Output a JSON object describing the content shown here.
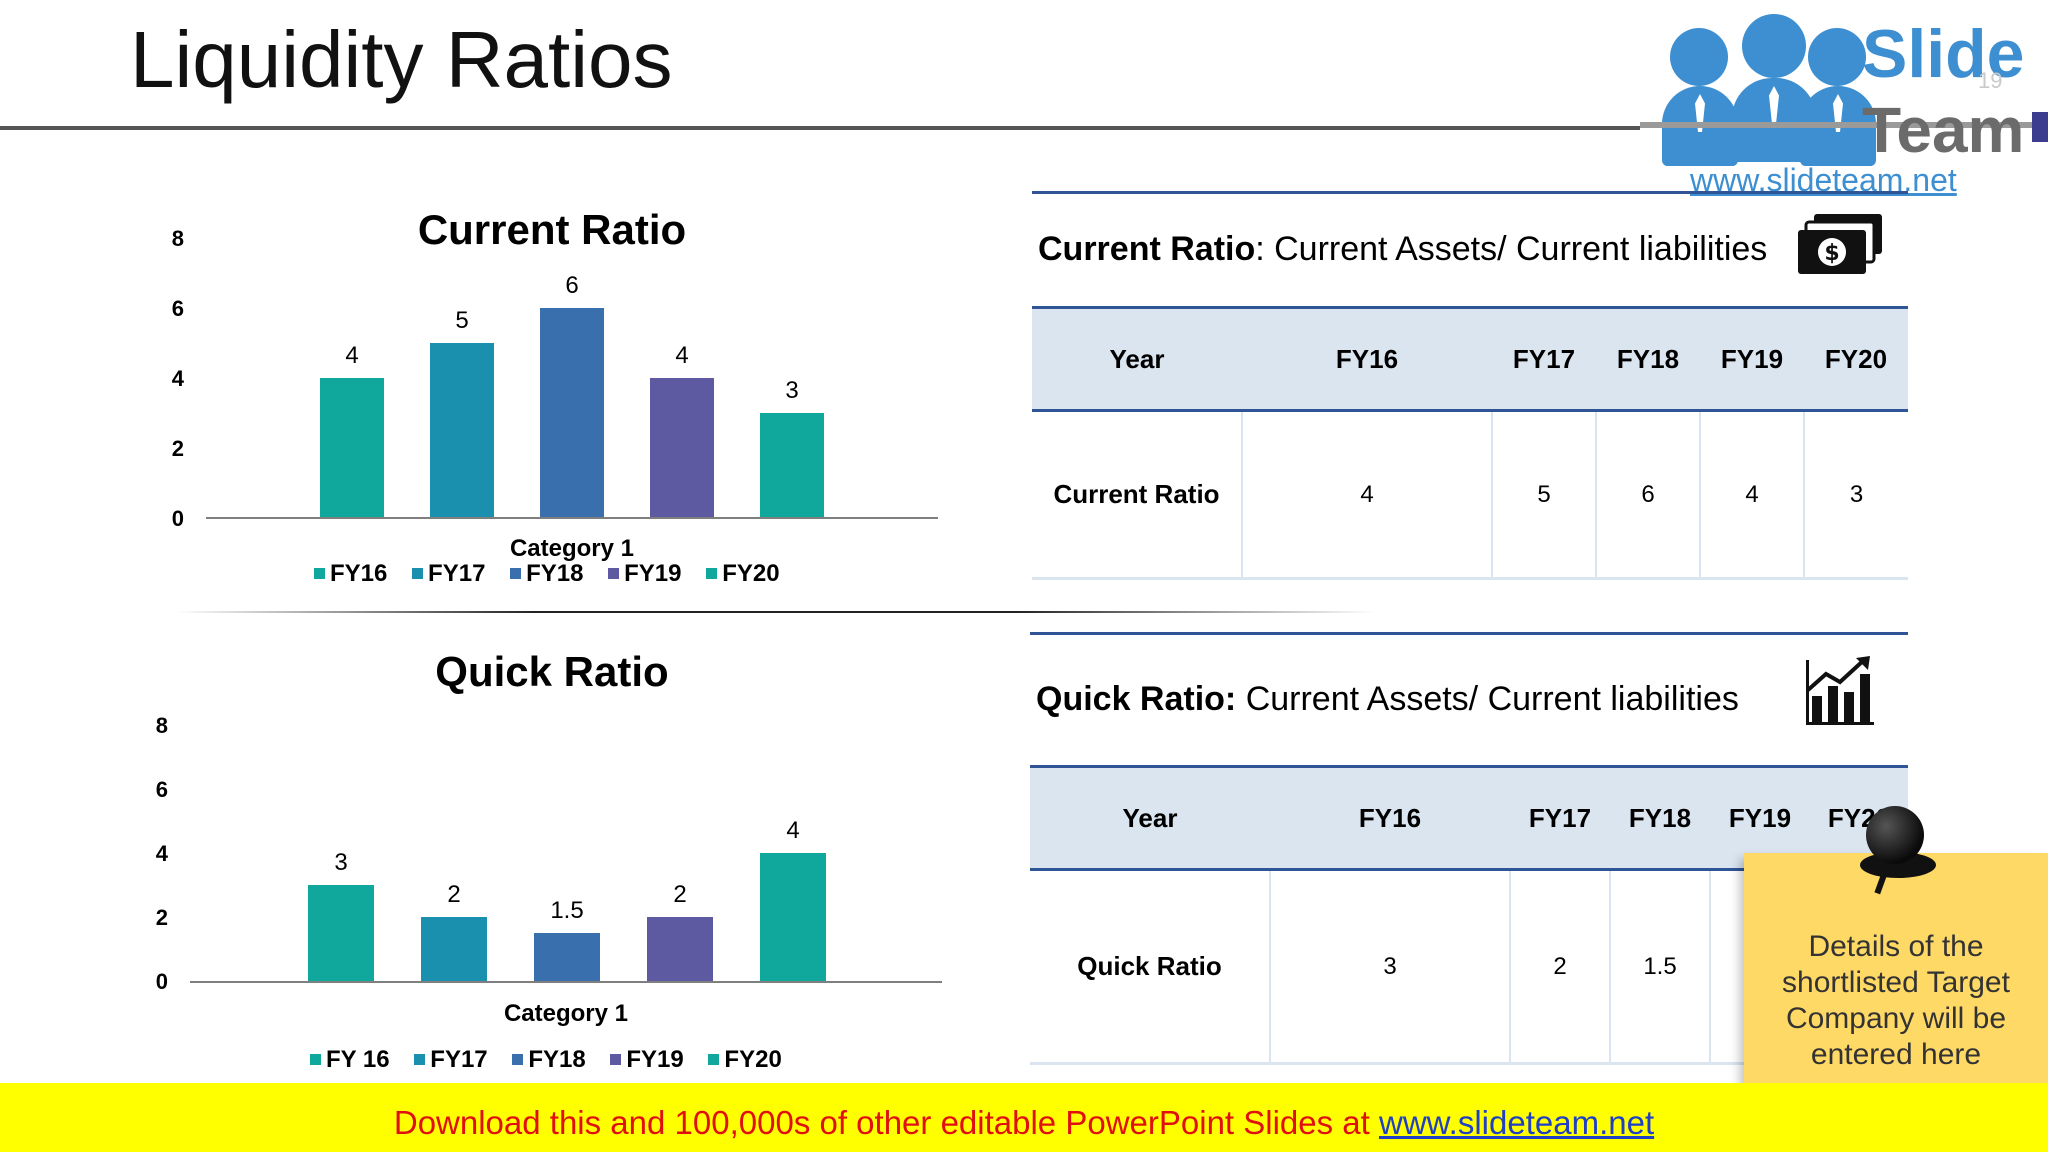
{
  "slide": {
    "title": "Liquidity Ratios",
    "page_number": "19"
  },
  "logo": {
    "word1": "Slide",
    "word2": "Team",
    "url": "www.slideteam.net"
  },
  "colors": {
    "teal": "#10a89c",
    "cyan_blue": "#1b8fae",
    "blue": "#3a6fad",
    "purple": "#5d5aa1",
    "header_fill": "#dae5f0",
    "rule_blue": "#2f5597",
    "banner_yellow": "#ffff00",
    "banner_red": "#e01010",
    "sticky_yellow": "#ffd966"
  },
  "chart_data": [
    {
      "type": "bar",
      "title": "Current Ratio",
      "categories": [
        "Category 1"
      ],
      "series": [
        {
          "name": "FY16",
          "values": [
            4
          ],
          "color": "#10a89c"
        },
        {
          "name": "FY17",
          "values": [
            5
          ],
          "color": "#1b8fae"
        },
        {
          "name": "FY18",
          "values": [
            6
          ],
          "color": "#3a6fad"
        },
        {
          "name": "FY19",
          "values": [
            4
          ],
          "color": "#5d5aa1"
        },
        {
          "name": "FY20",
          "values": [
            3
          ],
          "color": "#10a89c"
        }
      ],
      "data_labels": [
        "4",
        "5",
        "6",
        "4",
        "3"
      ],
      "yticks": [
        "0",
        "2",
        "4",
        "6",
        "8"
      ],
      "ylim": [
        0,
        8
      ],
      "legend": "bottom",
      "grid": false
    },
    {
      "type": "bar",
      "title": "Quick Ratio",
      "categories": [
        "Category 1"
      ],
      "series": [
        {
          "name": "FY 16",
          "values": [
            3
          ],
          "color": "#10a89c"
        },
        {
          "name": "FY17",
          "values": [
            2
          ],
          "color": "#1b8fae"
        },
        {
          "name": "FY18",
          "values": [
            1.5
          ],
          "color": "#3a6fad"
        },
        {
          "name": "FY19",
          "values": [
            2
          ],
          "color": "#5d5aa1"
        },
        {
          "name": "FY20",
          "values": [
            4
          ],
          "color": "#10a89c"
        }
      ],
      "data_labels": [
        "3",
        "2",
        "1.5",
        "2",
        "4"
      ],
      "yticks": [
        "0",
        "2",
        "4",
        "6",
        "8"
      ],
      "ylim": [
        0,
        8
      ],
      "legend": "bottom",
      "grid": false
    }
  ],
  "current_table": {
    "formula_term": "Current Ratio",
    "formula_rest": ": Current Assets/ Current liabilities",
    "icon": "money-stack-icon",
    "headers": [
      "Year",
      "FY16",
      "FY17",
      "FY18",
      "FY19",
      "FY20"
    ],
    "row": [
      "Current Ratio",
      "4",
      "5",
      "6",
      "4",
      "3"
    ]
  },
  "quick_table": {
    "formula_term": "Quick Ratio:",
    "formula_rest": " Current Assets/ Current liabilities",
    "icon": "growth-chart-icon",
    "headers": [
      "Year",
      "FY16",
      "FY17",
      "FY18",
      "FY19",
      "FY20"
    ],
    "row": [
      "Quick Ratio",
      "3",
      "2",
      "1.5",
      "",
      ""
    ]
  },
  "sticky_note": {
    "text": "Details of the shortlisted Target Company will be entered here"
  },
  "banner": {
    "text": "Download this and 100,000s of other editable PowerPoint Slides at ",
    "link": "www.slideteam.net"
  }
}
